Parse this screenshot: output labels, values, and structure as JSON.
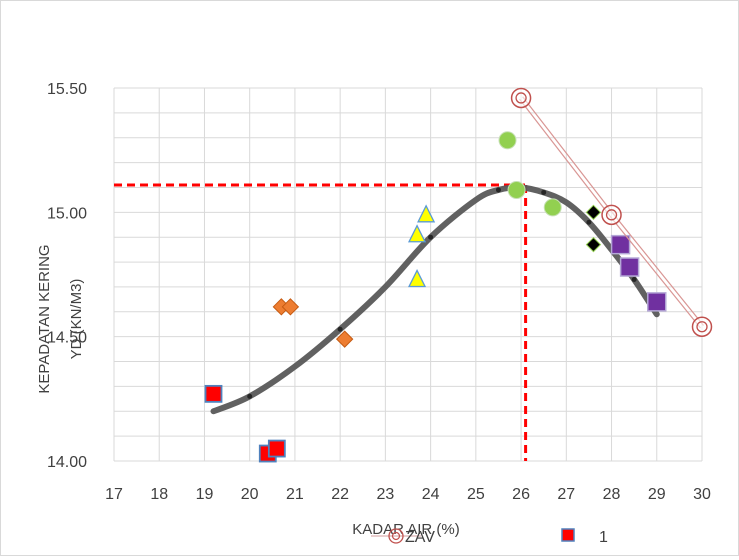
{
  "chart_data": {
    "type": "scatter",
    "title": "",
    "xlabel": "KADAR AIR (%)",
    "ylabel_lines": [
      "KEPADATAN KERING",
      "YD (KN/M3)"
    ],
    "xlim": [
      17,
      30
    ],
    "ylim": [
      14.0,
      15.5
    ],
    "x_ticks": [
      "17",
      "18",
      "19",
      "20",
      "21",
      "22",
      "23",
      "24",
      "25",
      "26",
      "27",
      "28",
      "29",
      "30"
    ],
    "y_ticks": [
      "14.00",
      "14.50",
      "15.00",
      "15.50"
    ],
    "grid": true,
    "legend_placement": "bottom",
    "series": [
      {
        "name": "1",
        "marker": "square",
        "color": "#ff0000",
        "x": [
          19.2,
          20.4,
          20.6
        ],
        "y": [
          14.27,
          14.03,
          14.05
        ]
      },
      {
        "marker": "diamond",
        "color": "#ed7d31",
        "x": [
          20.7,
          20.9,
          22.1
        ],
        "y": [
          14.62,
          14.62,
          14.49
        ]
      },
      {
        "marker": "triangle",
        "color": "#ffff00",
        "x": [
          23.7,
          23.9,
          23.7
        ],
        "y": [
          14.91,
          14.99,
          14.73
        ]
      },
      {
        "marker": "circle",
        "color": "#92d050",
        "x": [
          25.7,
          25.9,
          26.7
        ],
        "y": [
          15.29,
          15.09,
          15.02
        ]
      },
      {
        "marker": "diamond",
        "color": "#000000",
        "x": [
          27.6,
          27.6
        ],
        "y": [
          14.87,
          15.0
        ]
      },
      {
        "marker": "square",
        "color": "#7030a0",
        "x": [
          28.2,
          28.4,
          29.0
        ],
        "y": [
          14.87,
          14.78,
          14.64
        ]
      },
      {
        "name": "ZAV",
        "marker": "double-circle",
        "line": true,
        "color": "#c00000",
        "x": [
          26,
          28,
          30
        ],
        "y": [
          15.46,
          14.99,
          14.54
        ]
      },
      {
        "type": "curve",
        "color": "#595959",
        "x": [
          19.2,
          20,
          21,
          22,
          23,
          24,
          25,
          25.5,
          26,
          26.5,
          27,
          27.5,
          28,
          28.5,
          29
        ],
        "y": [
          14.2,
          14.26,
          14.38,
          14.53,
          14.7,
          14.9,
          15.05,
          15.09,
          15.1,
          15.08,
          15.04,
          14.96,
          14.85,
          14.73,
          14.59
        ]
      }
    ],
    "reference_lines": {
      "x": 26.1,
      "y": 15.11,
      "color": "#ff0000",
      "style": "dashed"
    }
  }
}
